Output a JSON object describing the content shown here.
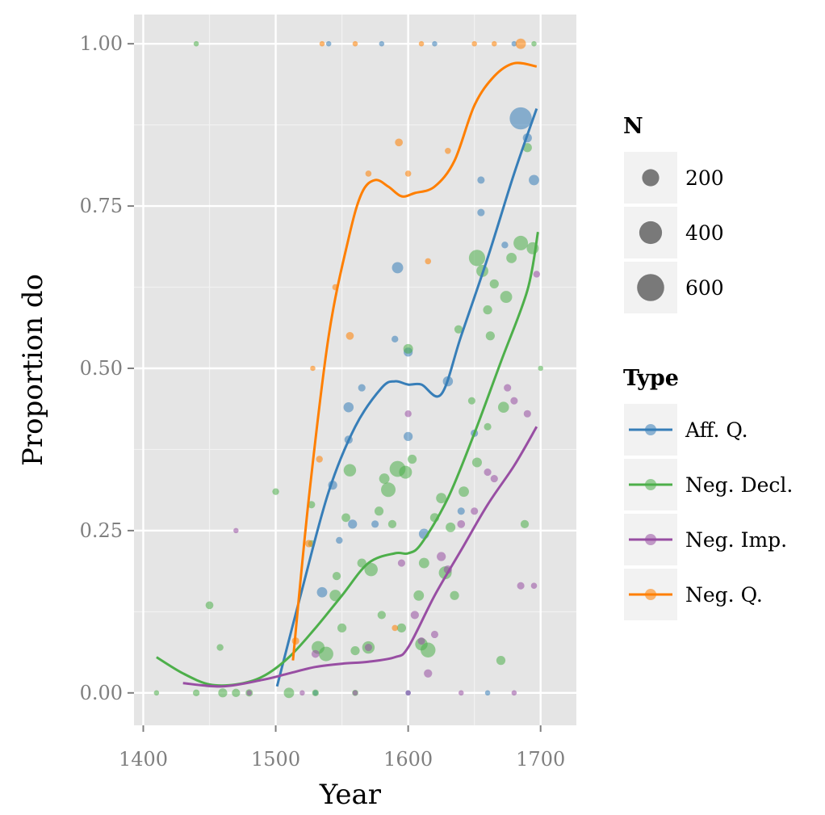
{
  "chart_data": {
    "type": "scatter",
    "xlabel": "Year",
    "ylabel": "Proportion do",
    "xlim": [
      1393,
      1727
    ],
    "ylim": [
      -0.05,
      1.045
    ],
    "x_ticks": [
      1400,
      1500,
      1600,
      1700
    ],
    "x_tick_labels": [
      "1400",
      "1500",
      "1600",
      "1700"
    ],
    "y_ticks": [
      0,
      0.25,
      0.5,
      0.75,
      1
    ],
    "y_tick_labels": [
      "0.00",
      "0.25",
      "0.50",
      "0.75",
      "1.00"
    ],
    "grid": true,
    "background": "#e5e5e5",
    "legend_position": "right",
    "size_legend": {
      "title": "N",
      "entries": [
        {
          "label": "200",
          "value": 200
        },
        {
          "label": "400",
          "value": 400
        },
        {
          "label": "600",
          "value": 600
        }
      ]
    },
    "color_legend": {
      "title": "Type",
      "entries": [
        "Aff. Q.",
        "Neg. Decl.",
        "Neg. Imp.",
        "Neg. Q."
      ]
    },
    "series": [
      {
        "name": "Aff. Q.",
        "color": "#377eb8",
        "curve": [
          [
            1501,
            0.01
          ],
          [
            1520,
            0.16
          ],
          [
            1540,
            0.31
          ],
          [
            1560,
            0.41
          ],
          [
            1580,
            0.47
          ],
          [
            1590,
            0.48
          ],
          [
            1600,
            0.475
          ],
          [
            1610,
            0.475
          ],
          [
            1625,
            0.46
          ],
          [
            1640,
            0.55
          ],
          [
            1660,
            0.67
          ],
          [
            1680,
            0.8
          ],
          [
            1697,
            0.9
          ]
        ],
        "points": [
          [
            1535,
            0.155,
            60
          ],
          [
            1543,
            0.32,
            40
          ],
          [
            1555,
            0.44,
            55
          ],
          [
            1555,
            0.39,
            30
          ],
          [
            1565,
            0.47,
            20
          ],
          [
            1558,
            0.26,
            40
          ],
          [
            1575,
            0.26,
            20
          ],
          [
            1592,
            0.655,
            75
          ],
          [
            1600,
            0.525,
            40
          ],
          [
            1600,
            0.395,
            40
          ],
          [
            1612,
            0.245,
            60
          ],
          [
            1630,
            0.48,
            55
          ],
          [
            1655,
            0.79,
            20
          ],
          [
            1655,
            0.74,
            20
          ],
          [
            1673,
            0.69,
            15
          ],
          [
            1685,
            0.885,
            420
          ],
          [
            1690,
            0.855,
            40
          ],
          [
            1695,
            0.79,
            60
          ],
          [
            1650,
            0.4,
            20
          ],
          [
            1640,
            0.28,
            20
          ],
          [
            1548,
            0.235,
            15
          ],
          [
            1590,
            0.545,
            15
          ],
          [
            1530,
            0,
            5
          ],
          [
            1600,
            0,
            5
          ],
          [
            1660,
            0,
            5
          ],
          [
            1540,
            1,
            5
          ],
          [
            1580,
            1,
            5
          ],
          [
            1620,
            1,
            5
          ],
          [
            1680,
            1,
            5
          ]
        ]
      },
      {
        "name": "Neg. Decl.",
        "color": "#4daf4a",
        "curve": [
          [
            1410,
            0.055
          ],
          [
            1430,
            0.03
          ],
          [
            1450,
            0.013
          ],
          [
            1470,
            0.013
          ],
          [
            1490,
            0.025
          ],
          [
            1510,
            0.055
          ],
          [
            1530,
            0.1
          ],
          [
            1550,
            0.15
          ],
          [
            1570,
            0.2
          ],
          [
            1590,
            0.215
          ],
          [
            1600,
            0.215
          ],
          [
            1610,
            0.23
          ],
          [
            1630,
            0.3
          ],
          [
            1650,
            0.4
          ],
          [
            1670,
            0.51
          ],
          [
            1690,
            0.62
          ],
          [
            1698,
            0.71
          ]
        ],
        "points": [
          [
            1450,
            0.135,
            25
          ],
          [
            1458,
            0.07,
            15
          ],
          [
            1500,
            0.31,
            15
          ],
          [
            1527,
            0.29,
            20
          ],
          [
            1527,
            0.23,
            15
          ],
          [
            1532,
            0.07,
            110
          ],
          [
            1538,
            0.06,
            150
          ],
          [
            1545,
            0.15,
            80
          ],
          [
            1550,
            0.1,
            40
          ],
          [
            1553,
            0.27,
            35
          ],
          [
            1556,
            0.343,
            100
          ],
          [
            1560,
            0.065,
            40
          ],
          [
            1565,
            0.2,
            40
          ],
          [
            1570,
            0.07,
            100
          ],
          [
            1572,
            0.19,
            120
          ],
          [
            1578,
            0.28,
            40
          ],
          [
            1582,
            0.33,
            60
          ],
          [
            1585,
            0.313,
            150
          ],
          [
            1588,
            0.26,
            30
          ],
          [
            1592,
            0.345,
            190
          ],
          [
            1595,
            0.1,
            40
          ],
          [
            1598,
            0.34,
            110
          ],
          [
            1603,
            0.36,
            40
          ],
          [
            1608,
            0.15,
            60
          ],
          [
            1610,
            0.075,
            100
          ],
          [
            1612,
            0.2,
            60
          ],
          [
            1615,
            0.066,
            160
          ],
          [
            1620,
            0.27,
            40
          ],
          [
            1625,
            0.3,
            60
          ],
          [
            1628,
            0.185,
            110
          ],
          [
            1632,
            0.255,
            50
          ],
          [
            1635,
            0.15,
            40
          ],
          [
            1638,
            0.56,
            30
          ],
          [
            1642,
            0.31,
            60
          ],
          [
            1648,
            0.45,
            20
          ],
          [
            1652,
            0.355,
            50
          ],
          [
            1652,
            0.67,
            200
          ],
          [
            1656,
            0.65,
            90
          ],
          [
            1660,
            0.59,
            40
          ],
          [
            1662,
            0.55,
            40
          ],
          [
            1665,
            0.63,
            40
          ],
          [
            1670,
            0.05,
            40
          ],
          [
            1672,
            0.44,
            70
          ],
          [
            1674,
            0.61,
            90
          ],
          [
            1678,
            0.67,
            60
          ],
          [
            1685,
            0.693,
            150
          ],
          [
            1690,
            0.84,
            40
          ],
          [
            1694,
            0.685,
            90
          ],
          [
            1688,
            0.26,
            30
          ],
          [
            1660,
            0.41,
            20
          ],
          [
            1600,
            0.53,
            50
          ],
          [
            1580,
            0.12,
            30
          ],
          [
            1546,
            0.18,
            30
          ],
          [
            1410,
            0,
            5
          ],
          [
            1440,
            0,
            15
          ],
          [
            1460,
            0,
            40
          ],
          [
            1470,
            0,
            30
          ],
          [
            1480,
            0,
            20
          ],
          [
            1510,
            0,
            60
          ],
          [
            1530,
            0,
            15
          ],
          [
            1560,
            0,
            10
          ],
          [
            1440,
            1,
            5
          ],
          [
            1700,
            0.5,
            5
          ],
          [
            1695,
            1,
            5
          ]
        ]
      },
      {
        "name": "Neg. Imp.",
        "color": "#984ea3",
        "curve": [
          [
            1430,
            0.015
          ],
          [
            1460,
            0.01
          ],
          [
            1490,
            0.02
          ],
          [
            1510,
            0.03
          ],
          [
            1530,
            0.04
          ],
          [
            1550,
            0.045
          ],
          [
            1570,
            0.048
          ],
          [
            1590,
            0.055
          ],
          [
            1600,
            0.07
          ],
          [
            1620,
            0.15
          ],
          [
            1640,
            0.22
          ],
          [
            1660,
            0.29
          ],
          [
            1680,
            0.35
          ],
          [
            1697,
            0.41
          ]
        ],
        "points": [
          [
            1470,
            0.25,
            5
          ],
          [
            1530,
            0.06,
            25
          ],
          [
            1570,
            0.07,
            20
          ],
          [
            1595,
            0.2,
            20
          ],
          [
            1600,
            0.43,
            15
          ],
          [
            1605,
            0.12,
            30
          ],
          [
            1610,
            0.08,
            20
          ],
          [
            1615,
            0.03,
            30
          ],
          [
            1625,
            0.21,
            40
          ],
          [
            1630,
            0.19,
            30
          ],
          [
            1640,
            0.26,
            25
          ],
          [
            1650,
            0.28,
            20
          ],
          [
            1660,
            0.34,
            20
          ],
          [
            1665,
            0.33,
            20
          ],
          [
            1675,
            0.47,
            20
          ],
          [
            1680,
            0.45,
            20
          ],
          [
            1685,
            0.165,
            20
          ],
          [
            1690,
            0.43,
            20
          ],
          [
            1695,
            0.165,
            10
          ],
          [
            1697,
            0.645,
            15
          ],
          [
            1620,
            0.09,
            20
          ],
          [
            1480,
            0,
            5
          ],
          [
            1520,
            0,
            5
          ],
          [
            1560,
            0,
            5
          ],
          [
            1600,
            0,
            5
          ],
          [
            1640,
            0,
            5
          ],
          [
            1680,
            0,
            5
          ]
        ]
      },
      {
        "name": "Neg. Q.",
        "color": "#ff7f00",
        "curve": [
          [
            1513,
            0.05
          ],
          [
            1525,
            0.3
          ],
          [
            1540,
            0.55
          ],
          [
            1555,
            0.7
          ],
          [
            1565,
            0.77
          ],
          [
            1575,
            0.79
          ],
          [
            1585,
            0.78
          ],
          [
            1595,
            0.765
          ],
          [
            1605,
            0.77
          ],
          [
            1620,
            0.78
          ],
          [
            1635,
            0.82
          ],
          [
            1650,
            0.905
          ],
          [
            1665,
            0.95
          ],
          [
            1680,
            0.97
          ],
          [
            1697,
            0.965
          ]
        ],
        "points": [
          [
            1515,
            0.08,
            20
          ],
          [
            1525,
            0.23,
            20
          ],
          [
            1533,
            0.36,
            15
          ],
          [
            1545,
            0.625,
            10
          ],
          [
            1556,
            0.55,
            25
          ],
          [
            1570,
            0.8,
            10
          ],
          [
            1593,
            0.848,
            25
          ],
          [
            1600,
            0.8,
            10
          ],
          [
            1615,
            0.665,
            10
          ],
          [
            1630,
            0.835,
            10
          ],
          [
            1528,
            0.5,
            5
          ],
          [
            1590,
            0.1,
            10
          ],
          [
            1535,
            1,
            5
          ],
          [
            1560,
            1,
            5
          ],
          [
            1610,
            1,
            5
          ],
          [
            1650,
            1,
            5
          ],
          [
            1665,
            1,
            5
          ],
          [
            1685,
            1,
            60
          ]
        ]
      }
    ]
  }
}
